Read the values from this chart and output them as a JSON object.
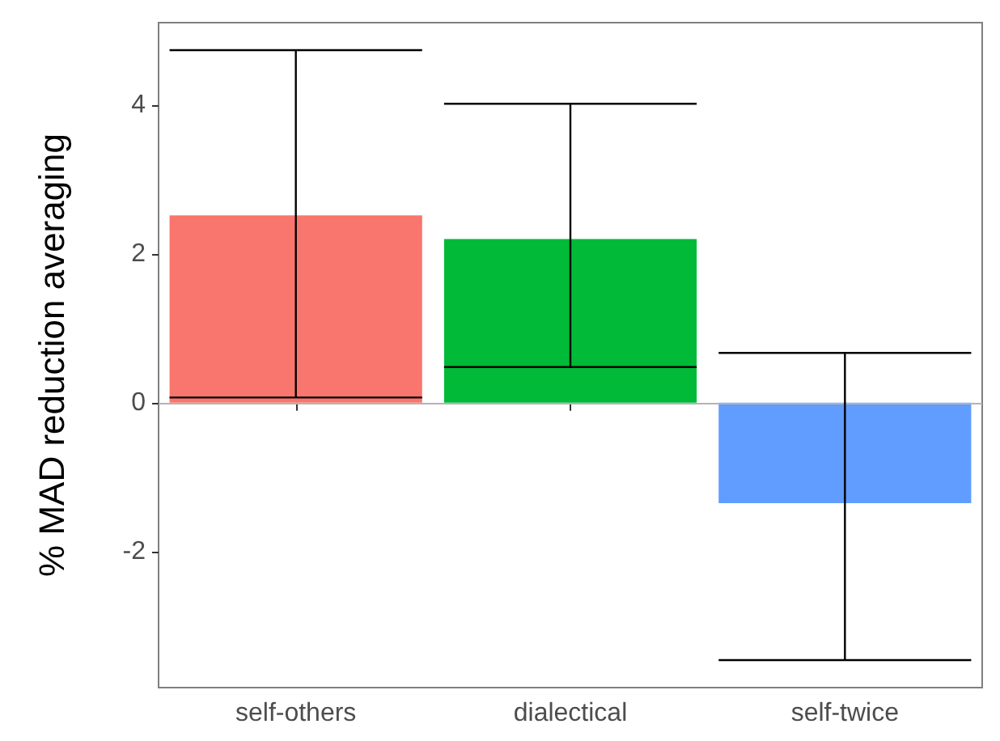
{
  "chart_data": {
    "type": "bar",
    "ylabel": "% MAD reduction averaging",
    "categories": [
      "self-others",
      "dialectical",
      "self-twice"
    ],
    "values": [
      2.52,
      2.2,
      -1.35
    ],
    "colors": [
      "#f8766d",
      "#00ba38",
      "#619cff"
    ],
    "errors": [
      [
        0.07,
        4.74
      ],
      [
        0.48,
        4.02
      ],
      [
        -3.46,
        0.67
      ]
    ],
    "ylim": [
      -3.83,
      5.11
    ],
    "yticks": [
      -2,
      0,
      2,
      4
    ],
    "grid": false,
    "ref_lines": [
      {
        "axis": "y",
        "value": 0,
        "color": "#b3b3b3"
      }
    ]
  }
}
